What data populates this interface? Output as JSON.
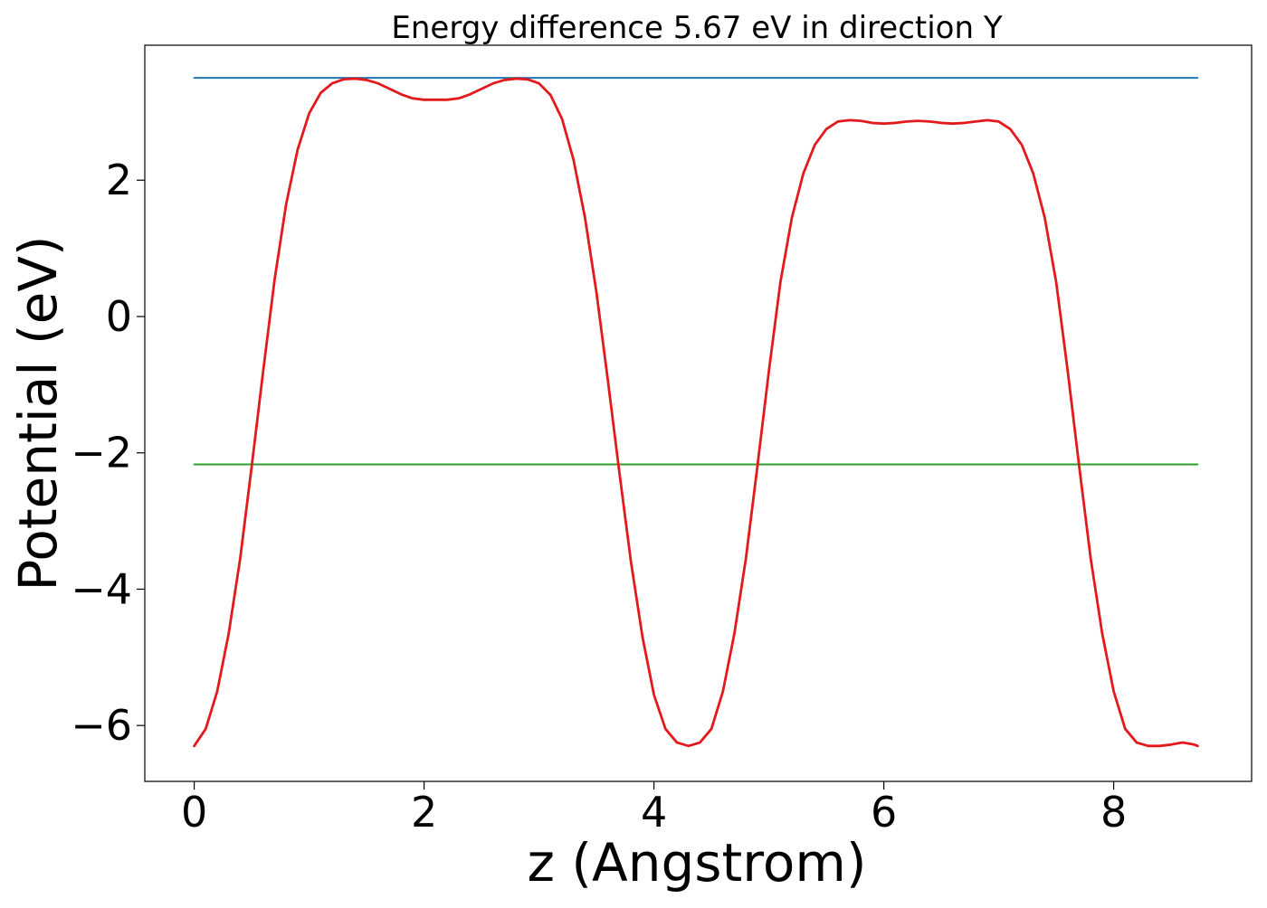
{
  "chart_data": {
    "type": "line",
    "title": "Energy difference 5.67 eV in direction Y",
    "xlabel": "z (Angstrom)",
    "ylabel": "Potential (eV)",
    "xlim": [
      -0.43,
      9.2
    ],
    "ylim": [
      -6.82,
      3.98
    ],
    "xticks": [
      0,
      2,
      4,
      6,
      8
    ],
    "xtick_labels": [
      "0",
      "2",
      "4",
      "6",
      "8"
    ],
    "yticks": [
      2,
      0,
      -2,
      -4,
      -6
    ],
    "ytick_labels": [
      "2",
      "0",
      "−2",
      "−4",
      "−6"
    ],
    "grid": false,
    "legend": "none",
    "series": [
      {
        "color": "#1f77b4",
        "x": [
          0,
          8.73
        ],
        "y": [
          3.5,
          3.5
        ]
      },
      {
        "color": "#2ca02c",
        "x": [
          0,
          8.73
        ],
        "y": [
          -2.17,
          -2.17
        ]
      },
      {
        "color": "#e31a1c",
        "x": [
          0,
          0.1,
          0.2,
          0.3,
          0.4,
          0.5,
          0.6,
          0.7,
          0.8,
          0.9,
          1.0,
          1.1,
          1.2,
          1.3,
          1.4,
          1.5,
          1.6,
          1.7,
          1.8,
          1.9,
          2.0,
          2.1,
          2.2,
          2.3,
          2.4,
          2.5,
          2.6,
          2.7,
          2.8,
          2.9,
          3.0,
          3.1,
          3.2,
          3.3,
          3.4,
          3.5,
          3.6,
          3.7,
          3.8,
          3.9,
          4.0,
          4.1,
          4.2,
          4.3,
          4.4,
          4.5,
          4.6,
          4.7,
          4.8,
          4.9,
          5.0,
          5.1,
          5.2,
          5.3,
          5.4,
          5.5,
          5.6,
          5.7,
          5.8,
          5.9,
          6.0,
          6.1,
          6.2,
          6.3,
          6.4,
          6.5,
          6.6,
          6.7,
          6.8,
          6.9,
          7.0,
          7.1,
          7.2,
          7.3,
          7.4,
          7.5,
          7.6,
          7.7,
          7.8,
          7.9,
          8.0,
          8.1,
          8.2,
          8.3,
          8.4,
          8.5,
          8.6,
          8.7,
          8.73
        ],
        "y": [
          -6.3,
          -6.05,
          -5.5,
          -4.65,
          -3.55,
          -2.2,
          -0.8,
          0.55,
          1.65,
          2.45,
          2.98,
          3.28,
          3.42,
          3.48,
          3.49,
          3.47,
          3.42,
          3.34,
          3.26,
          3.2,
          3.18,
          3.18,
          3.18,
          3.2,
          3.26,
          3.34,
          3.42,
          3.47,
          3.49,
          3.48,
          3.42,
          3.25,
          2.9,
          2.3,
          1.45,
          0.35,
          -0.95,
          -2.3,
          -3.6,
          -4.7,
          -5.55,
          -6.05,
          -6.25,
          -6.3,
          -6.25,
          -6.05,
          -5.5,
          -4.65,
          -3.55,
          -2.2,
          -0.8,
          0.5,
          1.45,
          2.1,
          2.52,
          2.75,
          2.86,
          2.88,
          2.87,
          2.84,
          2.83,
          2.84,
          2.86,
          2.87,
          2.86,
          2.84,
          2.83,
          2.84,
          2.86,
          2.88,
          2.86,
          2.75,
          2.52,
          2.1,
          1.45,
          0.5,
          -0.8,
          -2.2,
          -3.55,
          -4.65,
          -5.5,
          -6.05,
          -6.25,
          -6.3,
          -6.3,
          -6.28,
          -6.25,
          -6.28,
          -6.3
        ]
      }
    ]
  }
}
